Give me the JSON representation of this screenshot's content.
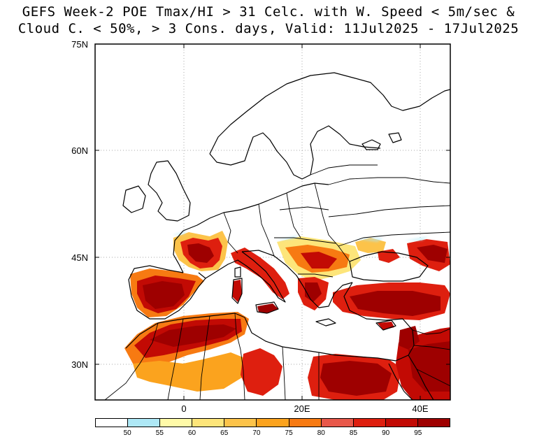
{
  "title": {
    "line1": "GEFS Week-2 POE Tmax/HI > 31 Celc. with W. Speed < 5m/sec &",
    "line2": "Cloud C. < 50%, > 3 Cons. days, Valid: 11Jul2025 - 17Jul2025"
  },
  "axes": {
    "lat_labels": [
      "75N",
      "60N",
      "45N",
      "30N"
    ],
    "lon_labels": [
      "0",
      "20E",
      "40E"
    ]
  },
  "colorbar": {
    "labels": [
      "50",
      "55",
      "60",
      "65",
      "70",
      "75",
      "80",
      "85",
      "90",
      "95"
    ],
    "colors": [
      "#ffffff",
      "#aee8f6",
      "#fffaa8",
      "#fde57a",
      "#fcc34a",
      "#fba31e",
      "#f77a12",
      "#e8584a",
      "#de1f0f",
      "#c20a04",
      "#9e0000"
    ]
  },
  "map": {
    "extent": {
      "lon": [
        -15,
        45
      ],
      "lat": [
        25,
        75
      ]
    },
    "graticule_lons": [
      0,
      20,
      40
    ],
    "graticule_lats": [
      30,
      45,
      60,
      75
    ]
  }
}
